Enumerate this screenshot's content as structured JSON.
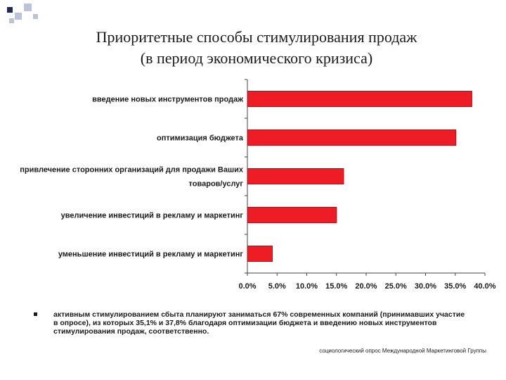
{
  "title": {
    "line1": "Приоритетные способы стимулирования  продаж",
    "line2": "(в период экономического кризиса)"
  },
  "colors": {
    "bar": "#ee1c25",
    "bar_edge": "#b30f16",
    "deco_dark": "#1f2a5c",
    "deco_light": "#bcc3d8"
  },
  "chart_data": {
    "type": "bar",
    "orientation": "horizontal",
    "categories": [
      "введение новых инструментов продаж",
      "оптимизация бюджета",
      "привлечение сторонних организаций для продажи Ваших товаров/услуг",
      "увеличение инвестиций в рекламу и маркетинг",
      "уменьшение инвестиций в рекламу и маркетинг"
    ],
    "category_lines": [
      [
        "введение новых инструментов продаж"
      ],
      [
        "оптимизация бюджета"
      ],
      [
        "привлечение сторонних организаций для продажи Ваших",
        "товаров/услуг"
      ],
      [
        "увеличение инвестиций в рекламу и маркетинг"
      ],
      [
        "уменьшение инвестиций в рекламу и маркетинг"
      ]
    ],
    "values": [
      37.8,
      35.1,
      16.2,
      15.0,
      4.2
    ],
    "xlim": [
      0,
      40
    ],
    "x_ticks": [
      0,
      5,
      10,
      15,
      20,
      25,
      30,
      35,
      40
    ],
    "x_tick_labels": [
      "0.0%",
      "5.0%",
      "10.0%",
      "15.0%",
      "20.0%",
      "25.0%",
      "30.0%",
      "35.0%",
      "40.0%"
    ],
    "title": "",
    "xlabel": "",
    "ylabel": "",
    "grid": false,
    "legend": "none"
  },
  "note": {
    "text": "активным стимулированием сбыта планируют заниматься 67% современных компаний (принимавших участие в опросе), из которых 35,1% и 37,8% благодаря оптимизации бюджета и введению новых инструментов стимулирования продаж, соответственно."
  },
  "source": "социологический опрос Международной Маркетинговой Группы"
}
